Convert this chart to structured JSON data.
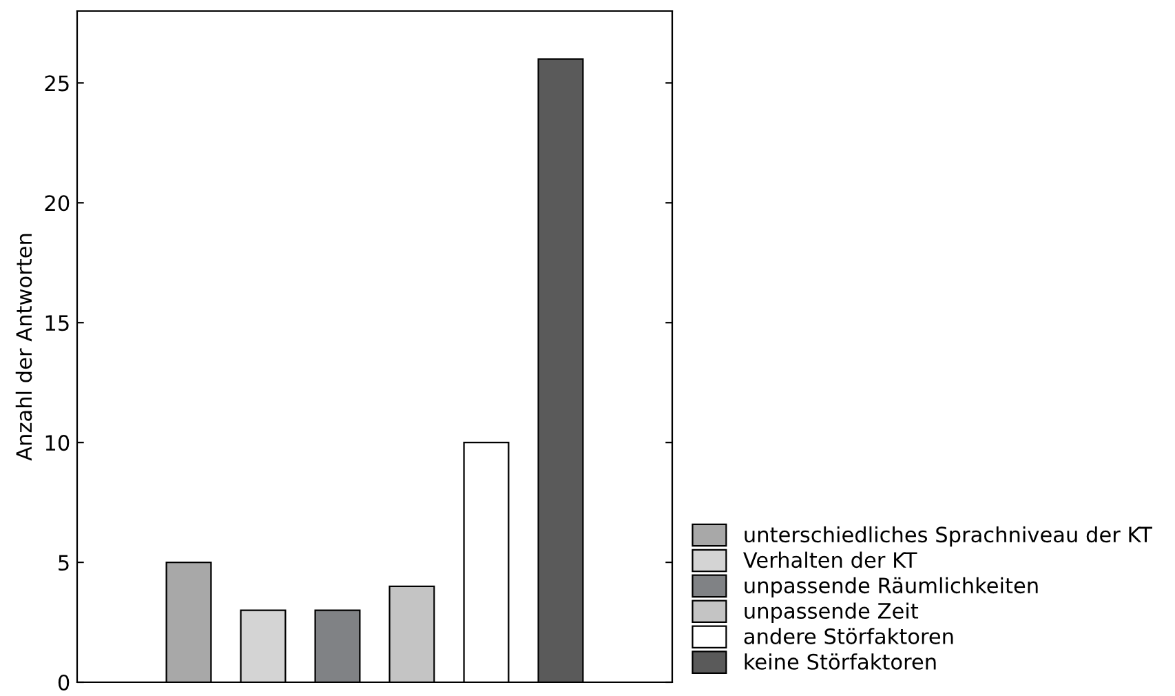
{
  "chart_data": {
    "type": "bar",
    "ylabel": "Anzahl der Antworten",
    "categories": [
      null,
      null,
      null,
      null,
      null,
      null,
      null,
      null
    ],
    "series": [
      {
        "name": "unterschiedliches Sprachniveau der KT",
        "color": "#a8a8a8",
        "values": [
          null,
          5,
          null,
          null,
          null,
          null,
          null,
          null
        ]
      },
      {
        "name": "Verhalten der KT",
        "color": "#d4d4d4",
        "values": [
          null,
          null,
          3,
          null,
          null,
          null,
          null,
          null
        ]
      },
      {
        "name": "unpassende Räumlichkeiten",
        "color": "#808285",
        "values": [
          null,
          null,
          null,
          3,
          null,
          null,
          null,
          null
        ]
      },
      {
        "name": "unpassende Zeit",
        "color": "#c4c4c4",
        "values": [
          null,
          null,
          null,
          null,
          4,
          null,
          null,
          null
        ]
      },
      {
        "name": "andere Störfaktoren",
        "color": "#ffffff",
        "values": [
          null,
          null,
          null,
          null,
          null,
          10,
          null,
          null
        ]
      },
      {
        "name": "keine Störfaktoren",
        "color": "#5a5a5a",
        "values": [
          null,
          null,
          null,
          null,
          null,
          null,
          26,
          null
        ]
      }
    ],
    "ylim": [
      0,
      28
    ],
    "yticks": [
      0,
      5,
      10,
      15,
      20,
      25
    ],
    "grid": false,
    "legend": "bottom right"
  }
}
